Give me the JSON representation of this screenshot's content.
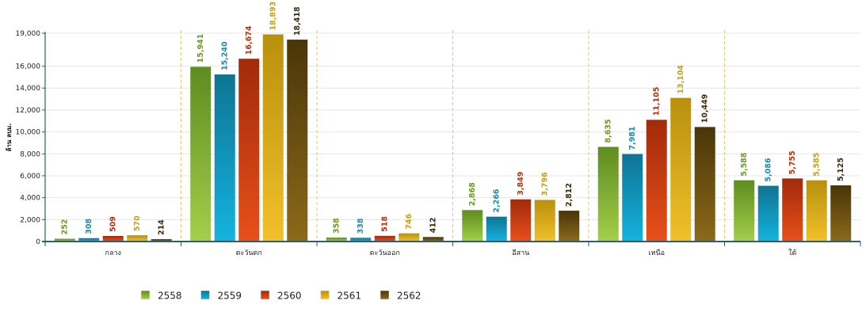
{
  "chart_data": {
    "type": "bar",
    "ylabel": "ล้าน ลบม.",
    "ylim": [
      0,
      19000
    ],
    "yticks": [
      0,
      2000,
      4000,
      6000,
      8000,
      10000,
      12000,
      14000,
      16000,
      19000
    ],
    "ytick_labels": [
      "0",
      "2,000",
      "4,000",
      "6,000",
      "8,000",
      "10,000",
      "12,000",
      "14,000",
      "16,000",
      "19,000"
    ],
    "categories": [
      "กลาง",
      "ตะวันตก",
      "ตะวันออก",
      "อีสาน",
      "เหนือ",
      "ใต้"
    ],
    "series": [
      {
        "name": "2558",
        "values": [
          252,
          15941,
          358,
          2868,
          8635,
          5588
        ],
        "labels": [
          "252",
          "15,941",
          "358",
          "2,868",
          "8,635",
          "5,588"
        ],
        "color_top": "#a3cf4a",
        "color_bottom": "#5e8c1f",
        "label_color": "#6a9a1e"
      },
      {
        "name": "2559",
        "values": [
          308,
          15240,
          338,
          2266,
          7981,
          5086
        ],
        "labels": [
          "308",
          "15,240",
          "338",
          "2,266",
          "7,981",
          "5,086"
        ],
        "color_top": "#14b3de",
        "color_bottom": "#0f7494",
        "label_color": "#1a8ab0"
      },
      {
        "name": "2560",
        "values": [
          509,
          16674,
          518,
          3849,
          11105,
          5755
        ],
        "labels": [
          "509",
          "16,674",
          "518",
          "3,849",
          "11,105",
          "5,755"
        ],
        "color_top": "#e8501a",
        "color_bottom": "#a22a0a",
        "label_color": "#b8300c"
      },
      {
        "name": "2561",
        "values": [
          570,
          18893,
          746,
          3796,
          13104,
          5585
        ],
        "labels": [
          "570",
          "18,893",
          "746",
          "3,796",
          "13,104",
          "5,585"
        ],
        "color_top": "#f2c02a",
        "color_bottom": "#b8900d",
        "label_color": "#c9a012"
      },
      {
        "name": "2562",
        "values": [
          214,
          18418,
          412,
          2812,
          10449,
          5125
        ],
        "labels": [
          "214",
          "18,418",
          "412",
          "2,812",
          "10,449",
          "5,125"
        ],
        "color_top": "#8c6a1a",
        "color_bottom": "#4a3508",
        "label_color": "#3a2a08"
      }
    ],
    "grid": true,
    "legend": "bottom-left"
  }
}
